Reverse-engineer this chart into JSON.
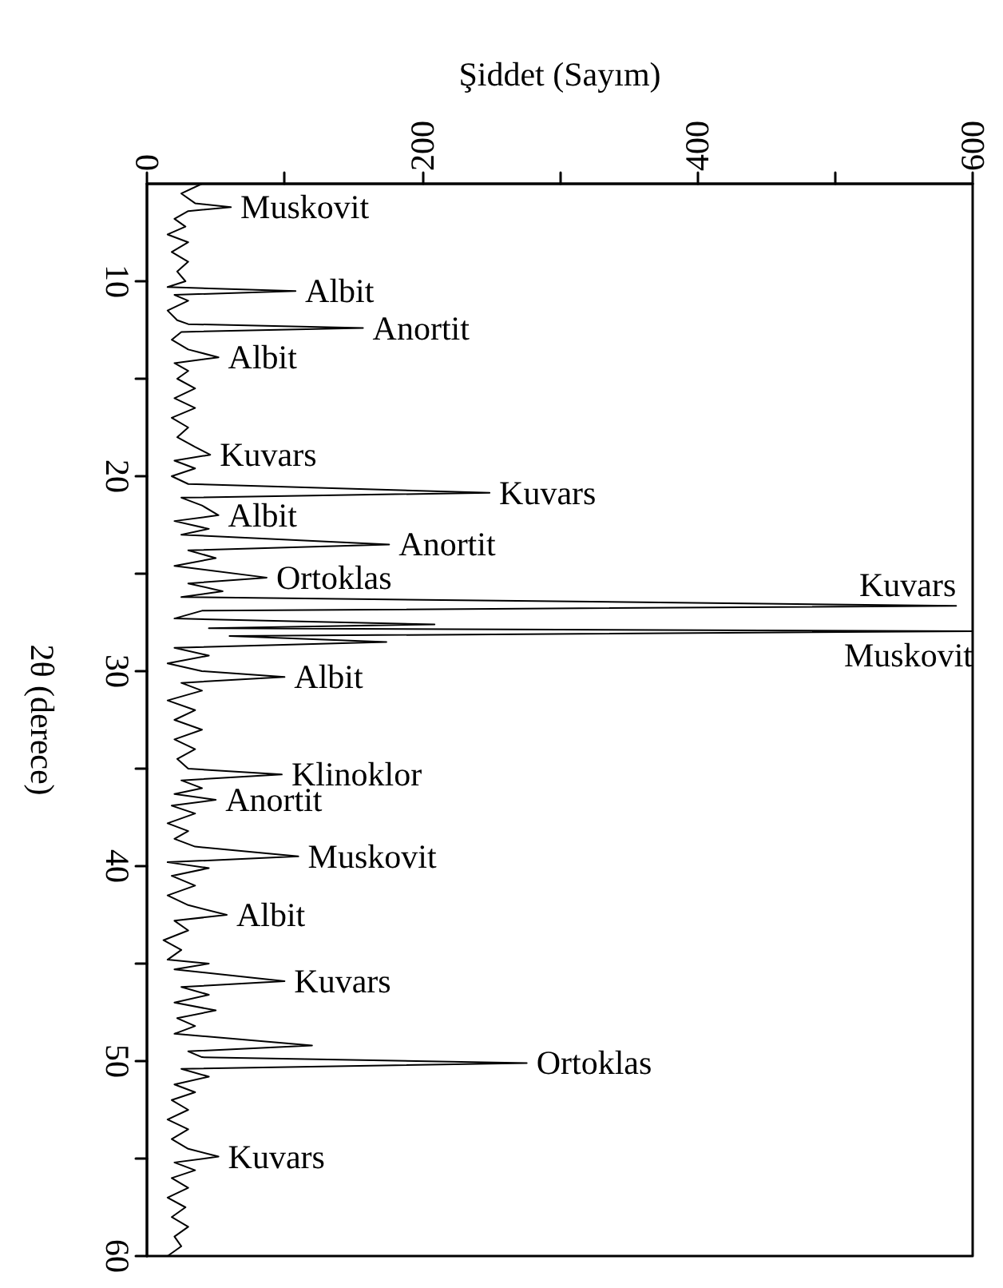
{
  "chart_data": {
    "type": "line",
    "orientation": "horizontal",
    "xlabel": "Şiddet (Sayım)",
    "ylabel": "2θ (derece)",
    "x": [
      5.0,
      5.5,
      6.0,
      6.2,
      6.4,
      6.8,
      7.2,
      7.6,
      8.0,
      8.5,
      9.0,
      9.5,
      10.0,
      10.3,
      10.5,
      10.7,
      11.0,
      11.5,
      12.0,
      12.2,
      12.4,
      12.6,
      13.0,
      13.5,
      13.9,
      14.2,
      14.6,
      15.0,
      15.5,
      16.0,
      16.5,
      17.0,
      17.5,
      18.0,
      18.5,
      18.9,
      19.2,
      19.6,
      20.0,
      20.4,
      20.85,
      21.1,
      21.5,
      22.0,
      22.3,
      22.7,
      23.0,
      23.5,
      23.8,
      24.2,
      24.6,
      25.2,
      25.5,
      25.9,
      26.2,
      26.65,
      26.9,
      27.3,
      27.6,
      27.8,
      27.95,
      28.2,
      28.5,
      28.8,
      29.2,
      29.6,
      30.0,
      30.3,
      30.6,
      31.0,
      31.5,
      32.0,
      32.5,
      33.0,
      33.5,
      34.0,
      34.5,
      35.0,
      35.3,
      35.6,
      36.0,
      36.3,
      36.6,
      36.9,
      37.3,
      37.8,
      38.2,
      38.6,
      39.0,
      39.5,
      39.8,
      40.1,
      40.5,
      41.0,
      41.5,
      42.0,
      42.5,
      42.8,
      43.3,
      43.8,
      44.3,
      44.8,
      45.0,
      45.3,
      45.9,
      46.2,
      46.6,
      47.0,
      47.4,
      47.8,
      48.2,
      48.6,
      49.2,
      49.5,
      49.8,
      50.1,
      50.4,
      50.8,
      51.2,
      51.6,
      52.0,
      52.5,
      53.0,
      53.5,
      54.0,
      54.5,
      54.9,
      55.2,
      55.6,
      56.0,
      56.5,
      57.0,
      57.5,
      58.0,
      58.5,
      59.0,
      59.5,
      60.0
    ],
    "values": [
      40,
      25,
      35,
      61,
      30,
      20,
      28,
      15,
      30,
      18,
      30,
      22,
      28,
      15,
      108,
      20,
      30,
      15,
      22,
      30,
      157,
      25,
      18,
      30,
      52,
      20,
      30,
      22,
      35,
      20,
      35,
      18,
      30,
      22,
      35,
      46,
      20,
      35,
      18,
      30,
      249,
      25,
      40,
      52,
      20,
      45,
      25,
      176,
      30,
      50,
      20,
      87,
      30,
      55,
      25,
      588,
      40,
      20,
      209,
      45,
      600,
      60,
      174,
      20,
      45,
      15,
      40,
      100,
      25,
      40,
      15,
      35,
      20,
      40,
      20,
      35,
      22,
      30,
      98,
      25,
      40,
      20,
      50,
      18,
      35,
      15,
      30,
      20,
      35,
      110,
      15,
      45,
      18,
      35,
      15,
      30,
      58,
      20,
      30,
      12,
      25,
      15,
      45,
      20,
      100,
      25,
      45,
      20,
      50,
      22,
      35,
      20,
      120,
      30,
      40,
      276,
      25,
      45,
      20,
      35,
      18,
      30,
      15,
      30,
      18,
      30,
      52,
      20,
      35,
      18,
      30,
      15,
      28,
      18,
      30,
      20,
      25,
      15
    ],
    "color": "#000000",
    "xlim": [
      0,
      600
    ],
    "xticks": [
      0,
      {
        "value": 100,
        "label": null
      },
      200,
      {
        "value": 300,
        "label": null
      },
      400,
      {
        "value": 500,
        "label": null
      },
      600
    ],
    "ylim": [
      60,
      5
    ],
    "yticks": [
      10,
      {
        "value": 15,
        "label": null
      },
      20,
      {
        "value": 25,
        "label": null
      },
      30,
      {
        "value": 35,
        "label": null
      },
      40,
      {
        "value": 45,
        "label": null
      },
      50,
      {
        "value": 55,
        "label": null
      },
      60
    ],
    "grid": false,
    "marker": "none",
    "line_style": "solid",
    "annotations": [
      {
        "text": "Muskovit",
        "y": 6.2,
        "x": 61
      },
      {
        "text": "Albit",
        "y": 10.5,
        "x": 108
      },
      {
        "text": "Anortit",
        "y": 12.4,
        "x": 157
      },
      {
        "text": "Albit",
        "y": 13.9,
        "x": 52
      },
      {
        "text": "Kuvars",
        "y": 18.9,
        "x": 46
      },
      {
        "text": "Kuvars",
        "y": 20.85,
        "x": 249
      },
      {
        "text": "Albit",
        "y": 22.0,
        "x": 52
      },
      {
        "text": "Anortit",
        "y": 23.5,
        "x": 176
      },
      {
        "text": "Ortoklas",
        "y": 25.2,
        "x": 87
      },
      {
        "text": "Kuvars",
        "y": 26.65,
        "x": 588
      },
      {
        "text": "Muskovit",
        "y": 27.95,
        "x": 600
      },
      {
        "text": "Albit",
        "y": 30.3,
        "x": 100
      },
      {
        "text": "Klinoklor",
        "y": 35.3,
        "x": 98
      },
      {
        "text": "Anortit",
        "y": 36.6,
        "x": 50
      },
      {
        "text": "Muskovit",
        "y": 39.5,
        "x": 110
      },
      {
        "text": "Albit",
        "y": 42.5,
        "x": 58
      },
      {
        "text": "Kuvars",
        "y": 45.9,
        "x": 100
      },
      {
        "text": "Ortoklas",
        "y": 50.1,
        "x": 276
      },
      {
        "text": "Kuvars",
        "y": 54.9,
        "x": 52
      }
    ]
  }
}
